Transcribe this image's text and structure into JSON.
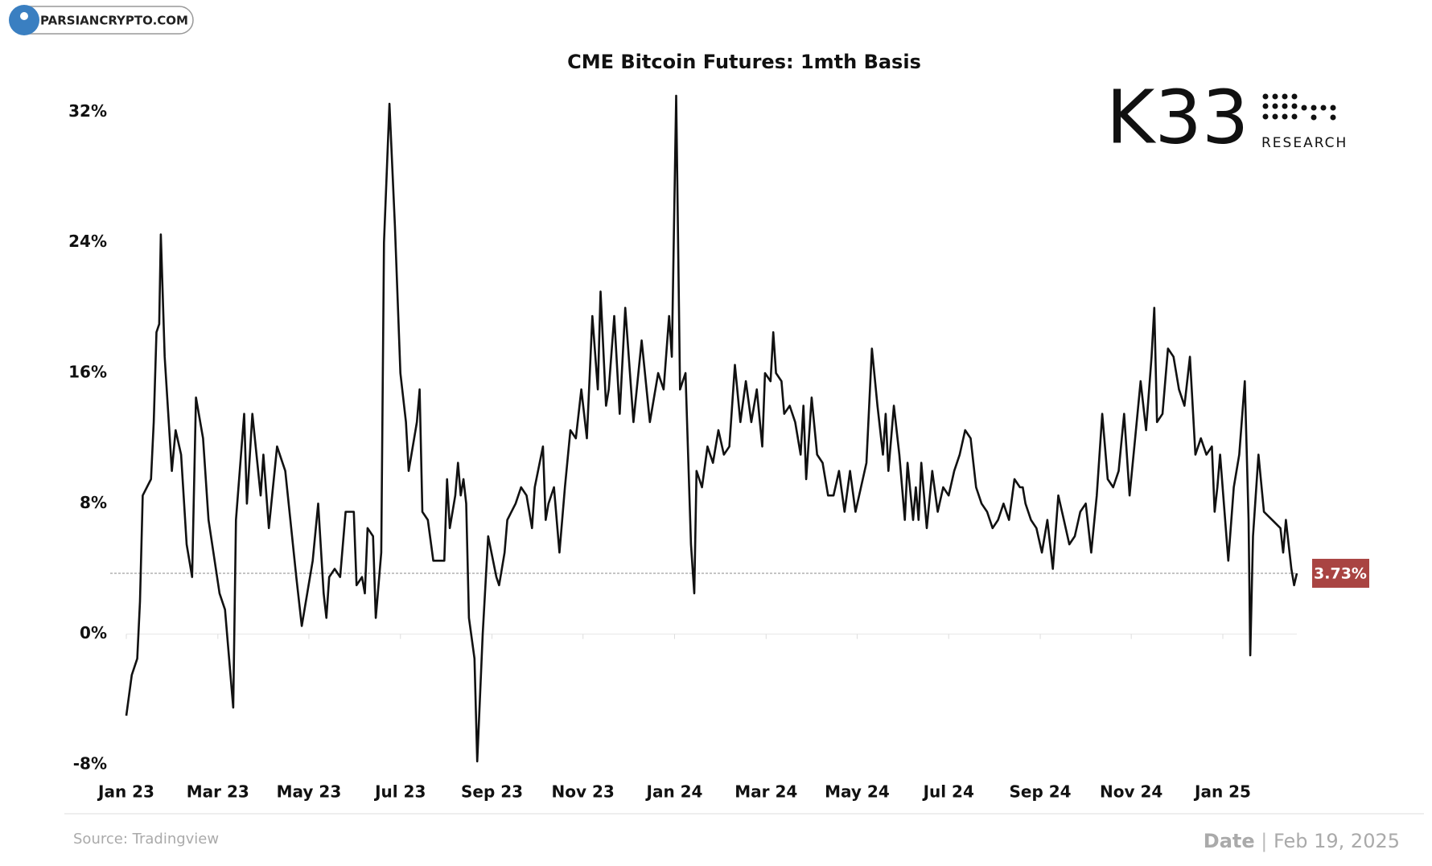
{
  "chart_data": {
    "type": "line",
    "title": "CME Bitcoin Futures: 1mth Basis",
    "watermark": "PARSIANCRYPTO.COM",
    "brand": "K33",
    "brand_sub": "RESEARCH",
    "source": "Source: Tradingview",
    "date_label": "Date",
    "date": "Feb 19, 2025",
    "color": "#111111",
    "x": [
      2023.0,
      2023.01,
      2023.02,
      2023.025,
      2023.03,
      2023.045,
      2023.05,
      2023.055,
      2023.06,
      2023.063,
      2023.07,
      2023.083,
      2023.09,
      2023.1,
      2023.11,
      2023.12,
      2023.127,
      2023.14,
      2023.15,
      2023.17,
      2023.18,
      2023.195,
      2023.2,
      2023.215,
      2023.22,
      2023.23,
      2023.245,
      2023.25,
      2023.26,
      2023.275,
      2023.29,
      2023.31,
      2023.32,
      2023.34,
      2023.35,
      2023.36,
      2023.365,
      2023.37,
      2023.38,
      2023.39,
      2023.4,
      2023.415,
      2023.42,
      2023.43,
      2023.435,
      2023.44,
      2023.45,
      2023.455,
      2023.465,
      2023.47,
      2023.48,
      2023.49,
      2023.5,
      2023.51,
      2023.515,
      2023.53,
      2023.535,
      2023.54,
      2023.55,
      2023.56,
      2023.58,
      2023.585,
      2023.59,
      2023.6,
      2023.605,
      2023.61,
      2023.615,
      2023.62,
      2023.625,
      2023.635,
      2023.64,
      2023.65,
      2023.66,
      2023.675,
      2023.68,
      2023.69,
      2023.695,
      2023.71,
      2023.72,
      2023.73,
      2023.74,
      2023.745,
      2023.76,
      2023.765,
      2023.77,
      2023.78,
      2023.79,
      2023.8,
      2023.81,
      2023.82,
      2023.83,
      2023.84,
      2023.85,
      2023.86,
      2023.865,
      2023.875,
      2023.88,
      2023.89,
      2023.9,
      2023.91,
      2023.925,
      2023.94,
      2023.955,
      2023.97,
      2023.98,
      2023.99,
      2023.995,
      2024.003,
      2024.01,
      2024.02,
      2024.03,
      2024.036,
      2024.04,
      2024.05,
      2024.06,
      2024.07,
      2024.08,
      2024.09,
      2024.1,
      2024.11,
      2024.12,
      2024.13,
      2024.14,
      2024.15,
      2024.16,
      2024.165,
      2024.175,
      2024.18,
      2024.185,
      2024.195,
      2024.2,
      2024.21,
      2024.22,
      2024.23,
      2024.235,
      2024.24,
      2024.25,
      2024.26,
      2024.27,
      2024.28,
      2024.29,
      2024.3,
      2024.31,
      2024.32,
      2024.33,
      2024.34,
      2024.35,
      2024.36,
      2024.37,
      2024.38,
      2024.385,
      2024.39,
      2024.4,
      2024.41,
      2024.42,
      2024.425,
      2024.435,
      2024.44,
      2024.445,
      2024.45,
      2024.46,
      2024.47,
      2024.48,
      2024.49,
      2024.5,
      2024.51,
      2024.52,
      2024.53,
      2024.54,
      2024.55,
      2024.56,
      2024.57,
      2024.58,
      2024.59,
      2024.6,
      2024.61,
      2024.62,
      2024.63,
      2024.635,
      2024.64,
      2024.65,
      2024.66,
      2024.67,
      2024.68,
      2024.69,
      2024.7,
      2024.71,
      2024.72,
      2024.73,
      2024.74,
      2024.75,
      2024.76,
      2024.77,
      2024.78,
      2024.79,
      2024.8,
      2024.81,
      2024.82,
      2024.83,
      2024.84,
      2024.85,
      2024.86,
      2024.87,
      2024.875,
      2024.88,
      2024.89,
      2024.9,
      2024.91,
      2024.92,
      2024.93,
      2024.94,
      2024.95,
      2024.96,
      2024.97,
      2024.98,
      2024.985,
      2024.99,
      2024.995,
      2025.01,
      2025.02,
      2025.03,
      2025.04,
      2025.047,
      2025.05,
      2025.055,
      2025.065,
      2025.075,
      2025.09,
      2025.105,
      2025.11,
      2025.115,
      2025.125,
      2025.13,
      2025.135
    ],
    "values": [
      -5,
      -2.5,
      -1.5,
      2,
      8.5,
      9.5,
      13,
      18.5,
      19,
      24.5,
      17,
      10,
      12.5,
      11,
      5.5,
      3.5,
      14.5,
      12,
      7,
      2.5,
      1.5,
      -4.5,
      7,
      13.5,
      8,
      13.5,
      8.5,
      11,
      6.5,
      11.5,
      10,
      3.5,
      0.5,
      4.5,
      8,
      2.5,
      1,
      3.5,
      4,
      3.5,
      7.5,
      7.5,
      3,
      3.5,
      2.5,
      6.5,
      6,
      1,
      5,
      24,
      32.5,
      25,
      16,
      13,
      10,
      13,
      15,
      7.5,
      7,
      4.5,
      4.5,
      9.5,
      6.5,
      8.5,
      10.5,
      8.5,
      9.5,
      8,
      1,
      -1.5,
      -7.8,
      0,
      6,
      3.5,
      3,
      5,
      7,
      8,
      9,
      8.5,
      6.5,
      9,
      11.5,
      7,
      8,
      9,
      5,
      9,
      12.5,
      12,
      15,
      12,
      19.5,
      15,
      21,
      14,
      15,
      19.5,
      13.5,
      20,
      13,
      18,
      13,
      16,
      15,
      19.5,
      17,
      33,
      15,
      16,
      5.5,
      2.5,
      10,
      9,
      11.5,
      10.5,
      12.5,
      11,
      11.5,
      16.5,
      13,
      15.5,
      13,
      15,
      11.5,
      16,
      15.5,
      18.5,
      16,
      15.5,
      13.5,
      14,
      13,
      11,
      14,
      9.5,
      14.5,
      11,
      10.5,
      8.5,
      8.5,
      10,
      7.5,
      10,
      7.5,
      9,
      10.5,
      17.5,
      14,
      11,
      13.5,
      10,
      14,
      11,
      7,
      10.5,
      7,
      9,
      7,
      10.5,
      6.5,
      10,
      7.5,
      9,
      8.5,
      10,
      11,
      12.5,
      12,
      9,
      8,
      7.5,
      6.5,
      7,
      8,
      7,
      9.5,
      9,
      9,
      8,
      7,
      6.5,
      5,
      7,
      4,
      8.5,
      7,
      5.5,
      6,
      7.5,
      8,
      5,
      8.5,
      13.5,
      9.5,
      9,
      10,
      13.5,
      8.5,
      12,
      15.5,
      12.5,
      17,
      20,
      13,
      13.5,
      17.5,
      17,
      15,
      14,
      17,
      11,
      12,
      11,
      11.5,
      7.5,
      9,
      11,
      4.5,
      9,
      11,
      15.5,
      7,
      -1.3,
      6,
      11,
      7.5,
      7,
      6.5,
      5,
      7,
      4,
      3,
      3.73
    ],
    "reference_line": {
      "value": 3.73,
      "label": "3.73%",
      "color": "#a94442"
    },
    "xlim": [
      2023,
      2025.135
    ],
    "xticks": [
      {
        "value": 2023,
        "label": "Jan 23"
      },
      {
        "value": 2023.167,
        "label": "Mar 23"
      },
      {
        "value": 2023.333,
        "label": "May 23"
      },
      {
        "value": 2023.5,
        "label": "Jul 23"
      },
      {
        "value": 2023.667,
        "label": "Sep 23"
      },
      {
        "value": 2023.833,
        "label": "Nov 23"
      },
      {
        "value": 2024,
        "label": "Jan 24"
      },
      {
        "value": 2024.167,
        "label": "Mar 24"
      },
      {
        "value": 2024.333,
        "label": "May 24"
      },
      {
        "value": 2024.5,
        "label": "Jul 24"
      },
      {
        "value": 2024.667,
        "label": "Sep 24"
      },
      {
        "value": 2024.833,
        "label": "Nov 24"
      },
      {
        "value": 2025,
        "label": "Jan 25"
      }
    ],
    "ylim": [
      -8,
      33
    ],
    "yticks": [
      {
        "value": -8,
        "label": "-8%"
      },
      {
        "value": 0,
        "label": "0%"
      },
      {
        "value": 8,
        "label": "8%"
      },
      {
        "value": 16,
        "label": "16%"
      },
      {
        "value": 24,
        "label": "24%"
      },
      {
        "value": 32,
        "label": "32%"
      }
    ]
  }
}
